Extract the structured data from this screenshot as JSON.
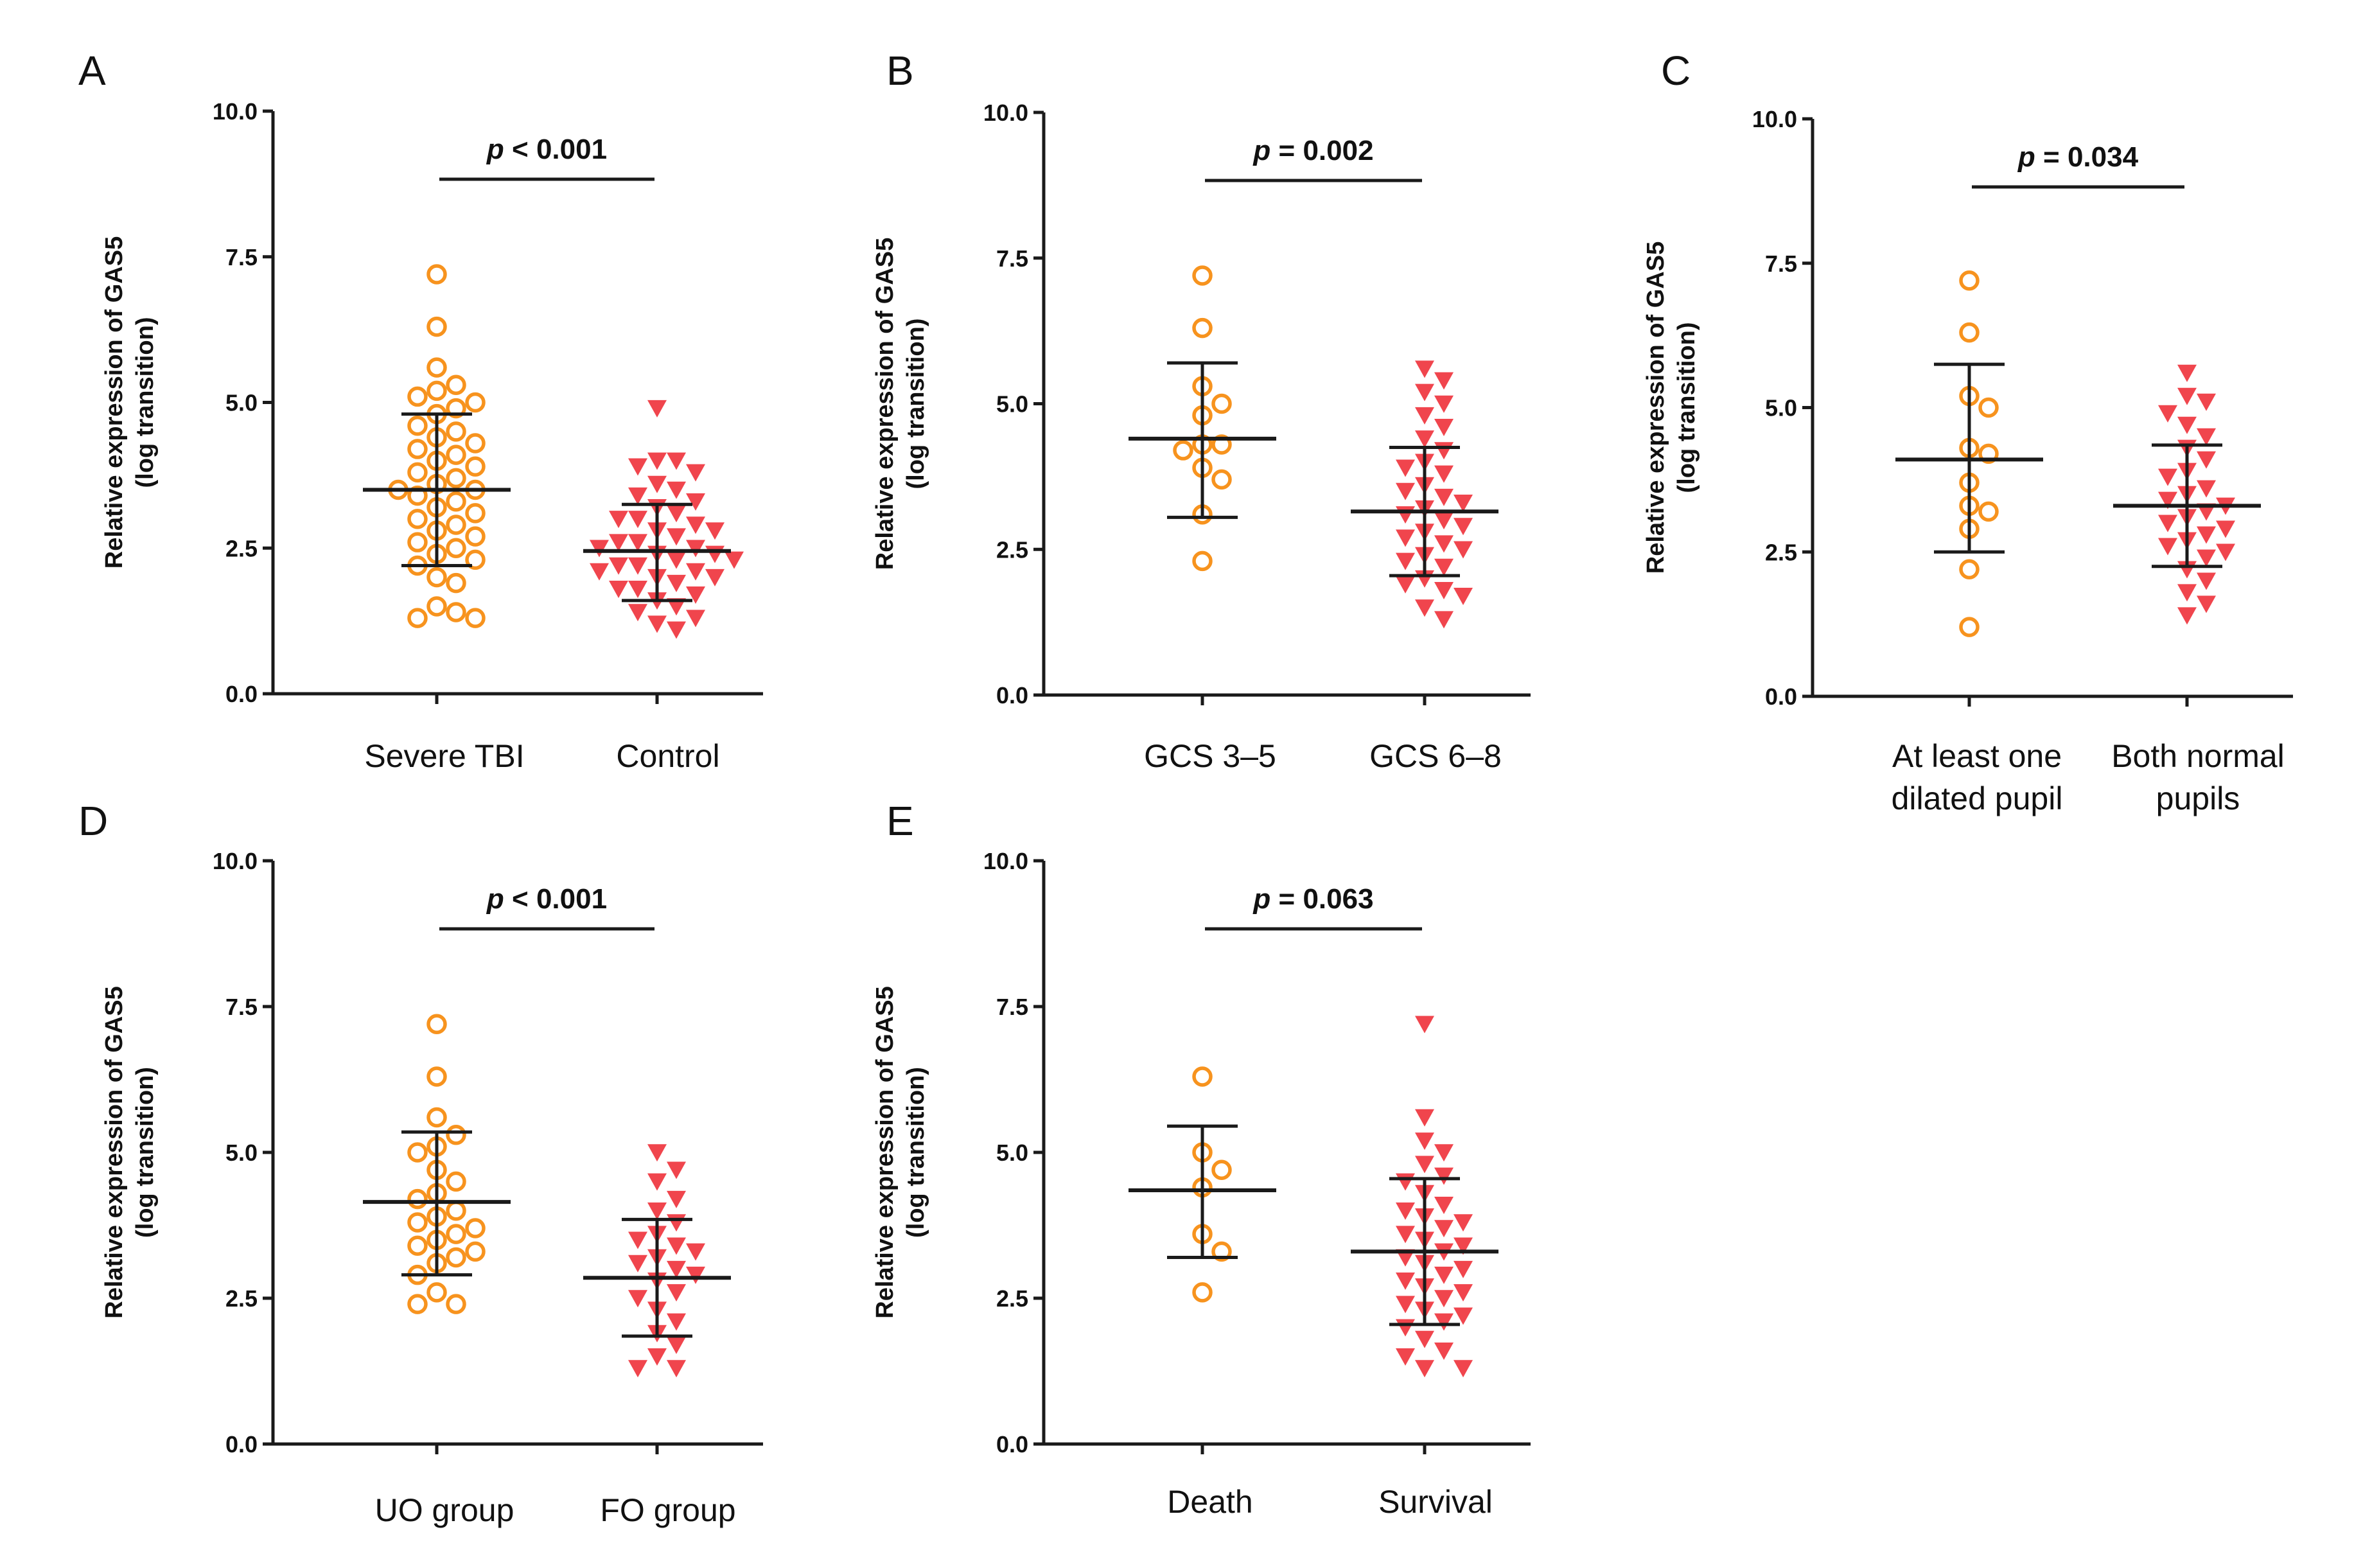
{
  "figure": {
    "colors": {
      "group1": "#f7931e",
      "group2": "#f0454d",
      "axis": "#1a1a1a"
    },
    "marker_shapes": {
      "group1": "open-circle",
      "group2": "filled-down-triangle"
    }
  },
  "chart_data": [
    {
      "panel": "A",
      "type": "scatter",
      "ylabel": "Relative expression of GAS5",
      "ylabel2": "(log transition)",
      "ylim": [
        0,
        10
      ],
      "yticks": [
        0,
        2.5,
        5,
        7.5,
        10
      ],
      "ytick_labels": [
        "0.0",
        "2.5",
        "5.0",
        "7.5",
        "10.0"
      ],
      "p_value": {
        "p": "p",
        "rest": " < 0.001"
      },
      "groups": [
        {
          "label": [
            "Severe TBI"
          ],
          "marker": "group1",
          "mean": 3.5,
          "sd_low": 2.2,
          "sd_high": 4.8,
          "values": [
            7.2,
            6.3,
            5.6,
            5.3,
            5.2,
            5.1,
            5.0,
            4.9,
            4.8,
            4.6,
            4.5,
            4.4,
            4.3,
            4.2,
            4.1,
            4.0,
            3.9,
            3.8,
            3.7,
            3.6,
            3.5,
            3.5,
            3.4,
            3.3,
            3.2,
            3.1,
            3.0,
            2.9,
            2.8,
            2.7,
            2.6,
            2.5,
            2.4,
            2.3,
            2.2,
            2.0,
            1.9,
            1.5,
            1.4,
            1.3,
            1.3
          ]
        },
        {
          "label": [
            "Control"
          ],
          "marker": "group2",
          "mean": 2.45,
          "sd_low": 1.6,
          "sd_high": 3.25,
          "values": [
            4.9,
            4.0,
            4.0,
            3.9,
            3.8,
            3.6,
            3.5,
            3.4,
            3.3,
            3.2,
            3.1,
            3.0,
            3.0,
            2.9,
            2.8,
            2.8,
            2.7,
            2.6,
            2.6,
            2.5,
            2.5,
            2.4,
            2.4,
            2.3,
            2.3,
            2.2,
            2.2,
            2.1,
            2.1,
            2.0,
            2.0,
            1.9,
            1.8,
            1.8,
            1.7,
            1.6,
            1.5,
            1.4,
            1.3,
            1.2,
            1.1
          ]
        }
      ]
    },
    {
      "panel": "B",
      "type": "scatter",
      "ylabel": "Relative expression of GAS5",
      "ylabel2": "(log transition)",
      "ylim": [
        0,
        10
      ],
      "yticks": [
        0,
        2.5,
        5,
        7.5,
        10
      ],
      "ytick_labels": [
        "0.0",
        "2.5",
        "5.0",
        "7.5",
        "10.0"
      ],
      "p_value": {
        "p": "p",
        "rest": " = 0.002"
      },
      "groups": [
        {
          "label": [
            "GCS 3–5"
          ],
          "marker": "group1",
          "mean": 4.4,
          "sd_low": 3.05,
          "sd_high": 5.7,
          "values": [
            7.2,
            6.3,
            5.3,
            5.0,
            4.8,
            4.3,
            4.3,
            4.2,
            3.9,
            3.7,
            3.1,
            2.3
          ]
        },
        {
          "label": [
            "GCS 6–8"
          ],
          "marker": "group2",
          "mean": 3.15,
          "sd_low": 2.05,
          "sd_high": 4.25,
          "values": [
            5.6,
            5.4,
            5.2,
            5.0,
            4.8,
            4.6,
            4.4,
            4.2,
            4.0,
            3.9,
            3.8,
            3.6,
            3.5,
            3.4,
            3.3,
            3.2,
            3.1,
            3.0,
            2.9,
            2.8,
            2.7,
            2.6,
            2.5,
            2.4,
            2.3,
            2.2,
            2.0,
            1.9,
            1.8,
            1.7,
            1.5,
            1.3
          ]
        }
      ]
    },
    {
      "panel": "C",
      "type": "scatter",
      "ylabel": "Relative expression of GAS5",
      "ylabel2": "(log transition)",
      "ylim": [
        0,
        10
      ],
      "yticks": [
        0,
        2.5,
        5,
        7.5,
        10
      ],
      "ytick_labels": [
        "0.0",
        "2.5",
        "5.0",
        "7.5",
        "10.0"
      ],
      "p_value": {
        "p": "p",
        "rest": " = 0.034"
      },
      "groups": [
        {
          "label": [
            "At least one",
            "dilated pupil"
          ],
          "marker": "group1",
          "mean": 4.1,
          "sd_low": 2.5,
          "sd_high": 5.75,
          "values": [
            7.2,
            6.3,
            5.2,
            5.0,
            4.3,
            4.2,
            3.7,
            3.3,
            3.2,
            2.9,
            2.2,
            1.2
          ]
        },
        {
          "label": [
            "Both normal",
            "pupils"
          ],
          "marker": "group2",
          "mean": 3.3,
          "sd_low": 2.25,
          "sd_high": 4.35,
          "values": [
            5.6,
            5.2,
            5.1,
            4.9,
            4.7,
            4.5,
            4.3,
            4.1,
            3.9,
            3.8,
            3.6,
            3.5,
            3.4,
            3.3,
            3.2,
            3.1,
            3.0,
            2.9,
            2.8,
            2.7,
            2.6,
            2.5,
            2.4,
            2.2,
            2.0,
            1.8,
            1.6,
            1.4
          ]
        }
      ]
    },
    {
      "panel": "D",
      "type": "scatter",
      "ylabel": "Relative expression of GAS5",
      "ylabel2": "(log transition)",
      "ylim": [
        0,
        10
      ],
      "yticks": [
        0,
        2.5,
        5,
        7.5,
        10
      ],
      "ytick_labels": [
        "0.0",
        "2.5",
        "5.0",
        "7.5",
        "10.0"
      ],
      "p_value": {
        "p": "p",
        "rest": " < 0.001"
      },
      "groups": [
        {
          "label": [
            "UO group"
          ],
          "marker": "group1",
          "mean": 4.15,
          "sd_low": 2.9,
          "sd_high": 5.35,
          "values": [
            7.2,
            6.3,
            5.6,
            5.3,
            5.1,
            5.0,
            4.7,
            4.5,
            4.3,
            4.2,
            4.0,
            3.9,
            3.8,
            3.7,
            3.6,
            3.5,
            3.4,
            3.3,
            3.2,
            3.1,
            2.9,
            2.6,
            2.4,
            2.4
          ]
        },
        {
          "label": [
            "FO group"
          ],
          "marker": "group2",
          "mean": 2.85,
          "sd_low": 1.85,
          "sd_high": 3.85,
          "values": [
            5.0,
            4.7,
            4.5,
            4.2,
            4.0,
            3.8,
            3.6,
            3.5,
            3.4,
            3.3,
            3.2,
            3.1,
            3.0,
            2.9,
            2.8,
            2.6,
            2.5,
            2.3,
            2.1,
            1.9,
            1.7,
            1.5,
            1.3,
            1.3
          ]
        }
      ]
    },
    {
      "panel": "E",
      "type": "scatter",
      "ylabel": "Relative expression of GAS5",
      "ylabel2": "(log transition)",
      "ylim": [
        0,
        10
      ],
      "yticks": [
        0,
        2.5,
        5,
        7.5,
        10
      ],
      "ytick_labels": [
        "0.0",
        "2.5",
        "5.0",
        "7.5",
        "10.0"
      ],
      "p_value": {
        "p": "p",
        "rest": " = 0.063"
      },
      "groups": [
        {
          "label": [
            "Death"
          ],
          "marker": "group1",
          "mean": 4.35,
          "sd_low": 3.2,
          "sd_high": 5.45,
          "values": [
            6.3,
            5.0,
            4.7,
            4.4,
            3.6,
            3.3,
            2.6
          ]
        },
        {
          "label": [
            "Survival"
          ],
          "marker": "group2",
          "mean": 3.3,
          "sd_low": 2.05,
          "sd_high": 4.55,
          "values": [
            7.2,
            5.6,
            5.2,
            5.0,
            4.8,
            4.6,
            4.5,
            4.3,
            4.1,
            4.0,
            3.9,
            3.8,
            3.7,
            3.6,
            3.5,
            3.4,
            3.3,
            3.2,
            3.1,
            3.0,
            2.9,
            2.8,
            2.7,
            2.6,
            2.5,
            2.4,
            2.3,
            2.2,
            2.1,
            2.0,
            1.8,
            1.6,
            1.5,
            1.3,
            1.3
          ]
        }
      ]
    }
  ]
}
